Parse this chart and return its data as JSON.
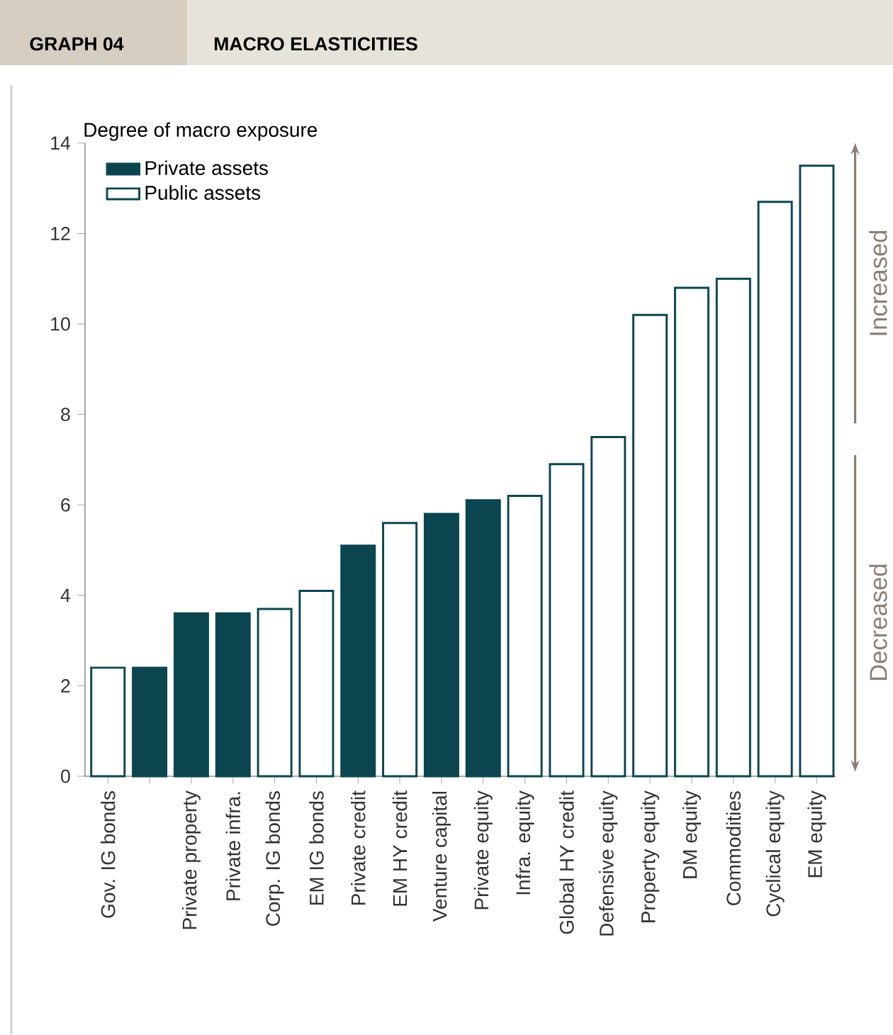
{
  "chart_data": {
    "type": "bar",
    "title": "GRAPH 04",
    "subtitle": "MACRO ELASTICITIES",
    "ylabel": "Degree of macro exposure",
    "categories": [
      "Gov. IG bonds",
      null,
      "Private property",
      "Private infra.",
      "Corp. IG bonds",
      "EM IG bonds",
      "Private credit",
      "EM HY credit",
      "Venture capital",
      "Private equity",
      "Infra. equity",
      "Global HY credit",
      "Defensive equity",
      "Property equity",
      "DM equity",
      "Commodities",
      "Cyclical equity",
      "EM equity"
    ],
    "series": [
      {
        "name": "Private assets",
        "color": "#0b4650",
        "values": [
          null,
          2.4,
          3.6,
          3.6,
          null,
          null,
          5.1,
          null,
          5.8,
          6.1,
          null,
          null,
          null,
          null,
          null,
          null,
          null,
          null
        ]
      },
      {
        "name": "Public assets",
        "color": "#ffffff",
        "values": [
          2.4,
          null,
          null,
          null,
          3.7,
          4.1,
          null,
          5.6,
          null,
          null,
          6.2,
          6.9,
          7.5,
          10.2,
          10.8,
          11.0,
          12.7,
          13.5
        ]
      }
    ],
    "ylim": [
      0,
      14
    ],
    "yticks": [
      0,
      2,
      4,
      6,
      8,
      10,
      12,
      14
    ],
    "grid": false,
    "legend": "top left",
    "annotations": [
      "Increased",
      "Decreased"
    ]
  }
}
